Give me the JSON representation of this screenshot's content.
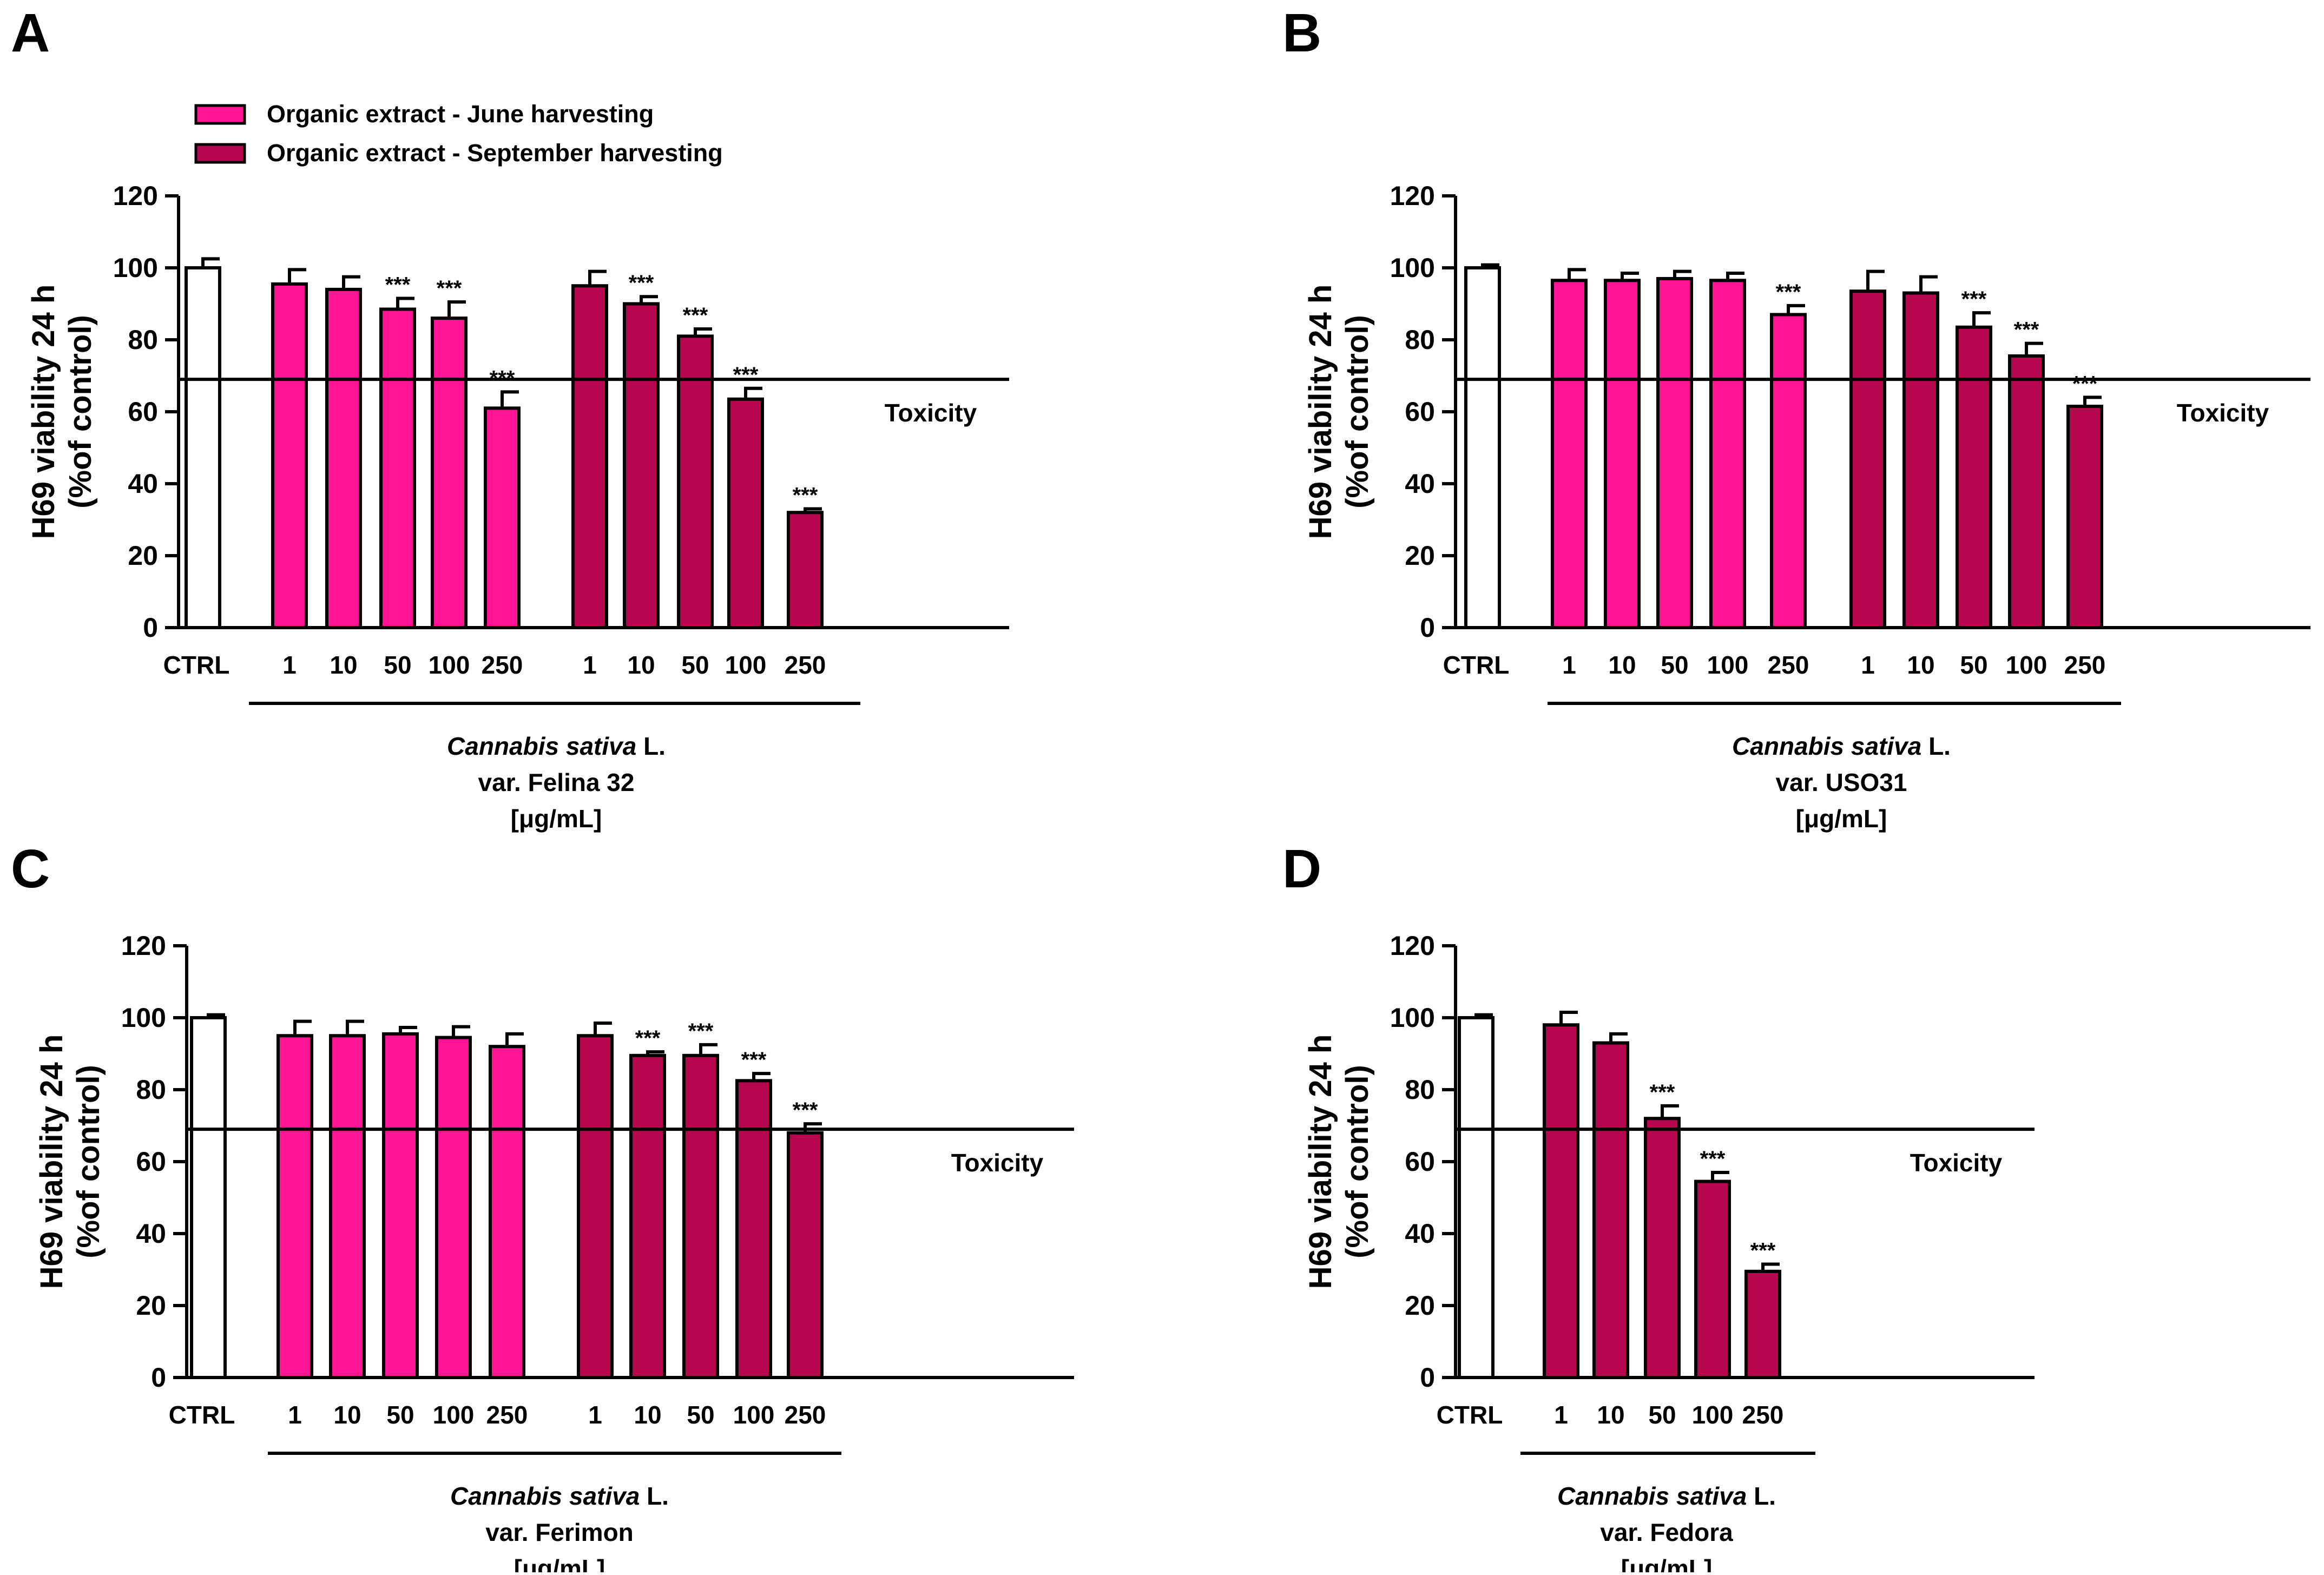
{
  "figure": {
    "legend": {
      "items": [
        {
          "label": "Organic extract - June harvesting",
          "color": "#ff1493"
        },
        {
          "label": "Organic extract - September harvesting",
          "color": "#b5064e"
        }
      ]
    },
    "ylabel_line1": "H69 viability 24 h",
    "ylabel_line2": "(%of control)",
    "toxicity_label": "Toxicity",
    "toxicity_threshold": 69,
    "sig_mark": "***",
    "unit_label": "[μg/mL]",
    "species_italic": "Cannabis sativa",
    "species_suffix": " L.",
    "colors": {
      "control": "#ffffff",
      "june": "#ff1493",
      "september": "#b5064e",
      "axis": "#000000"
    }
  },
  "chart_data": [
    {
      "panel": "A",
      "type": "bar",
      "variety": "var. Felina 32",
      "ylim": [
        0,
        120
      ],
      "yticks": [
        0,
        20,
        40,
        60,
        80,
        100,
        120
      ],
      "ylabel": "H69 viability 24 h (%of control)",
      "control": {
        "label": "CTRL",
        "value": 100,
        "error": 2.5
      },
      "series": [
        {
          "name": "Organic extract - June harvesting",
          "categories": [
            "1",
            "10",
            "50",
            "100",
            "250"
          ],
          "values": [
            95.5,
            94,
            88.5,
            86,
            61
          ],
          "errors": [
            4,
            3.5,
            3,
            4.5,
            4.5
          ],
          "significant": [
            false,
            false,
            true,
            true,
            true
          ]
        },
        {
          "name": "Organic extract - September harvesting",
          "categories": [
            "1",
            "10",
            "50",
            "100",
            "250"
          ],
          "values": [
            95,
            90,
            81,
            63.5,
            32
          ],
          "errors": [
            4,
            2,
            2,
            3,
            1
          ],
          "significant": [
            false,
            true,
            true,
            true,
            true
          ]
        }
      ]
    },
    {
      "panel": "B",
      "type": "bar",
      "variety": "var. USO31",
      "ylim": [
        0,
        120
      ],
      "yticks": [
        0,
        20,
        40,
        60,
        80,
        100,
        120
      ],
      "ylabel": "H69 viability 24 h (%of control)",
      "control": {
        "label": "CTRL",
        "value": 100,
        "error": 0.8
      },
      "series": [
        {
          "name": "Organic extract - June harvesting",
          "categories": [
            "1",
            "10",
            "50",
            "100",
            "250"
          ],
          "values": [
            96.5,
            96.5,
            97,
            96.5,
            87
          ],
          "errors": [
            3,
            2,
            2,
            2,
            2.5
          ],
          "significant": [
            false,
            false,
            false,
            false,
            true
          ]
        },
        {
          "name": "Organic extract - September harvesting",
          "categories": [
            "1",
            "10",
            "50",
            "100",
            "250"
          ],
          "values": [
            93.5,
            93,
            83.5,
            75.5,
            61.5
          ],
          "errors": [
            5.5,
            4.5,
            4,
            3.5,
            2.5
          ],
          "significant": [
            false,
            false,
            true,
            true,
            true
          ]
        }
      ]
    },
    {
      "panel": "C",
      "type": "bar",
      "variety": "var. Ferimon",
      "ylim": [
        0,
        120
      ],
      "yticks": [
        0,
        20,
        40,
        60,
        80,
        100,
        120
      ],
      "ylabel": "H69 viability 24 h (%of control)",
      "control": {
        "label": "CTRL",
        "value": 100,
        "error": 0.8
      },
      "series": [
        {
          "name": "Organic extract - June harvesting",
          "categories": [
            "1",
            "10",
            "50",
            "100",
            "250"
          ],
          "values": [
            95,
            95,
            95.5,
            94.5,
            92
          ],
          "errors": [
            4,
            4,
            1.8,
            3,
            3.5
          ],
          "significant": [
            false,
            false,
            false,
            false,
            false
          ]
        },
        {
          "name": "Organic extract - September harvesting",
          "categories": [
            "1",
            "10",
            "50",
            "100",
            "250"
          ],
          "values": [
            95,
            89.5,
            89.5,
            82.5,
            68
          ],
          "errors": [
            3.5,
            1,
            3,
            2,
            2.5
          ],
          "significant": [
            false,
            true,
            true,
            true,
            true
          ]
        }
      ]
    },
    {
      "panel": "D",
      "type": "bar",
      "variety": "var. Fedora",
      "ylim": [
        0,
        120
      ],
      "yticks": [
        0,
        20,
        40,
        60,
        80,
        100,
        120
      ],
      "ylabel": "H69 viability 24 h (%of control)",
      "control": {
        "label": "CTRL",
        "value": 100,
        "error": 0.8
      },
      "series": [
        {
          "name": "Organic extract - September harvesting",
          "categories": [
            "1",
            "10",
            "50",
            "100",
            "250"
          ],
          "values": [
            98,
            93,
            72,
            54.5,
            29.5
          ],
          "errors": [
            3.5,
            2.5,
            3.5,
            2.5,
            2
          ],
          "significant": [
            false,
            false,
            true,
            true,
            true
          ]
        }
      ]
    }
  ]
}
